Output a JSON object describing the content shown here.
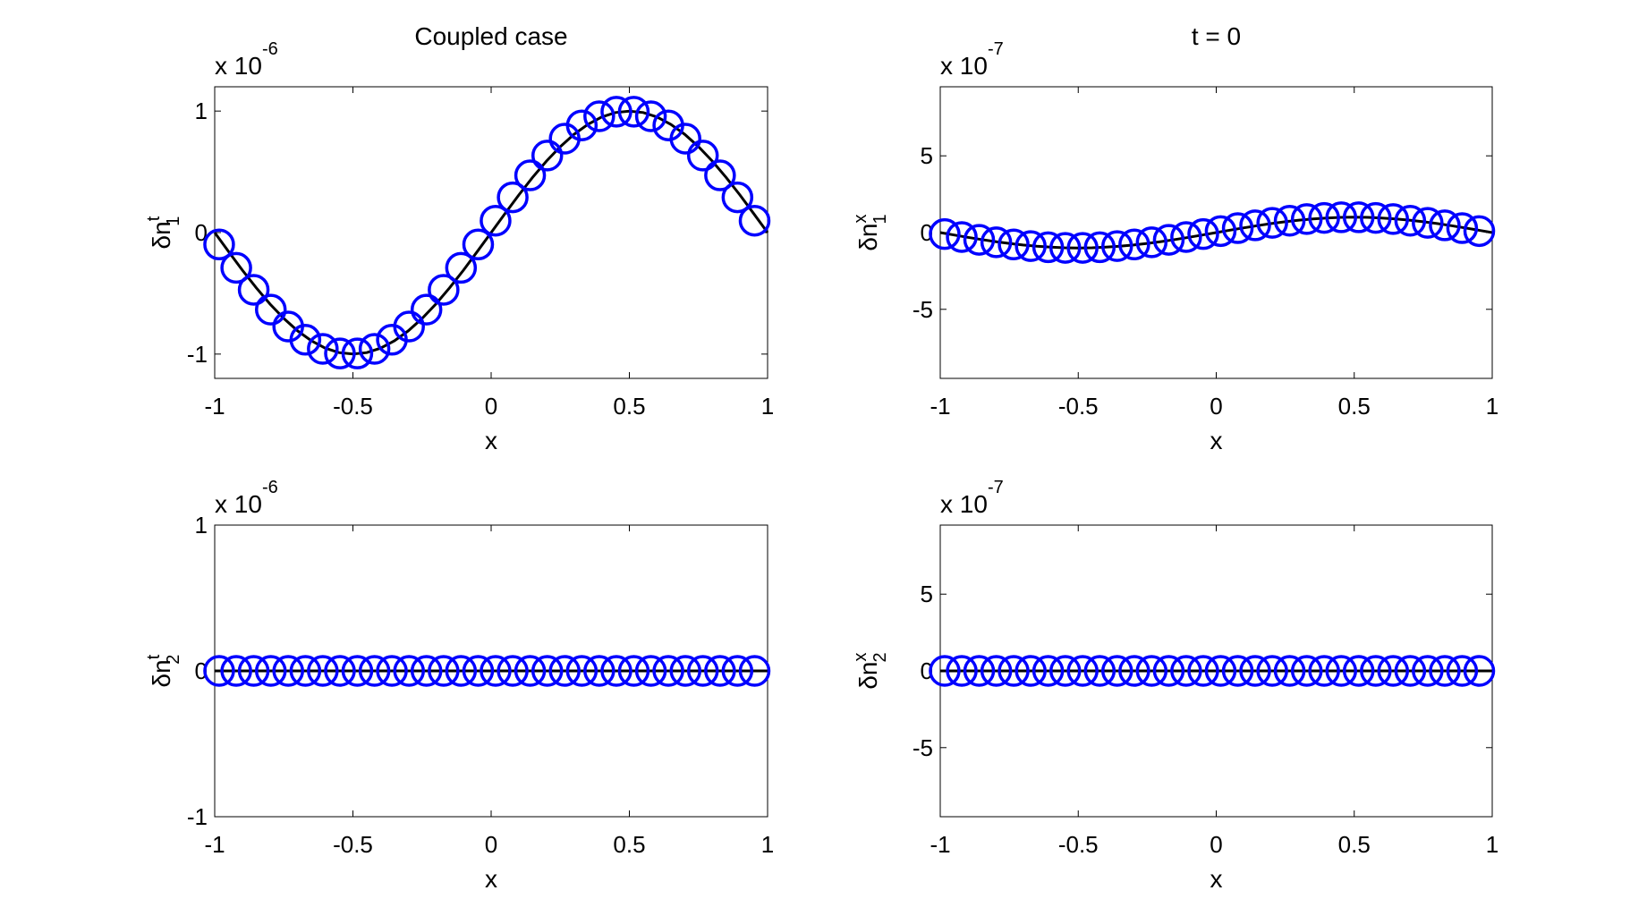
{
  "figure": {
    "background": "#ffffff",
    "marker_color": "#0000ff",
    "line_color": "#000000"
  },
  "chart_data": [
    {
      "type": "line",
      "title": "Coupled case",
      "xlabel": "x",
      "ylabel": {
        "base": "δn",
        "sup": "t",
        "sub": "1"
      },
      "exponent": {
        "prefix": "x 10",
        "power": "-6"
      },
      "xlim": [
        -1,
        1
      ],
      "ylim": [
        -1.2,
        1.2
      ],
      "xticks": [
        -1,
        -0.5,
        0,
        0.5,
        1
      ],
      "xtick_labels": [
        "-1",
        "-0.5",
        "0",
        "0.5",
        "1"
      ],
      "yticks": [
        -1,
        0,
        1
      ],
      "ytick_labels": [
        "-1",
        "0",
        "1"
      ],
      "series": [
        {
          "kind": "reference-line",
          "x": [
            -1,
            -0.95,
            -0.9,
            -0.85,
            -0.8,
            -0.75,
            -0.7,
            -0.65,
            -0.6,
            -0.55,
            -0.5,
            -0.45,
            -0.4,
            -0.35,
            -0.3,
            -0.25,
            -0.2,
            -0.15,
            -0.1,
            -0.05,
            0,
            0.05,
            0.1,
            0.15,
            0.2,
            0.25,
            0.3,
            0.35,
            0.4,
            0.45,
            0.5,
            0.55,
            0.6,
            0.65,
            0.7,
            0.75,
            0.8,
            0.85,
            0.9,
            0.95,
            1
          ],
          "y": [
            0,
            -0.156,
            -0.309,
            -0.454,
            -0.588,
            -0.707,
            -0.809,
            -0.891,
            -0.951,
            -0.988,
            -1,
            -0.988,
            -0.951,
            -0.891,
            -0.809,
            -0.707,
            -0.588,
            -0.454,
            -0.309,
            -0.156,
            0,
            0.156,
            0.309,
            0.454,
            0.588,
            0.707,
            0.809,
            0.891,
            0.951,
            0.988,
            1,
            0.988,
            0.951,
            0.891,
            0.809,
            0.707,
            0.588,
            0.454,
            0.309,
            0.156,
            0
          ]
        },
        {
          "kind": "markers",
          "x": [
            -0.984,
            -0.922,
            -0.859,
            -0.797,
            -0.734,
            -0.672,
            -0.609,
            -0.547,
            -0.484,
            -0.422,
            -0.359,
            -0.297,
            -0.234,
            -0.172,
            -0.109,
            -0.047,
            0.016,
            0.078,
            0.141,
            0.203,
            0.266,
            0.328,
            0.391,
            0.453,
            0.516,
            0.578,
            0.641,
            0.703,
            0.766,
            0.828,
            0.891,
            0.953
          ],
          "y": [
            -0.098,
            -0.29,
            -0.471,
            -0.634,
            -0.773,
            -0.882,
            -0.957,
            -0.995,
            -0.995,
            -0.957,
            -0.882,
            -0.773,
            -0.634,
            -0.471,
            -0.29,
            -0.098,
            0.098,
            0.29,
            0.471,
            0.634,
            0.773,
            0.882,
            0.957,
            0.995,
            0.995,
            0.957,
            0.882,
            0.773,
            0.634,
            0.471,
            0.29,
            0.098
          ]
        }
      ]
    },
    {
      "type": "line",
      "title": "t = 0",
      "xlabel": "x",
      "ylabel": {
        "base": "δn",
        "sup": "x",
        "sub": "1"
      },
      "exponent": {
        "prefix": "x 10",
        "power": "-7"
      },
      "xlim": [
        -1,
        1
      ],
      "ylim": [
        -9.5,
        9.5
      ],
      "xticks": [
        -1,
        -0.5,
        0,
        0.5,
        1
      ],
      "xtick_labels": [
        "-1",
        "-0.5",
        "0",
        "0.5",
        "1"
      ],
      "yticks": [
        -5,
        0,
        5
      ],
      "ytick_labels": [
        "-5",
        "0",
        "5"
      ],
      "series": [
        {
          "kind": "reference-line",
          "x": [
            -1,
            -0.95,
            -0.9,
            -0.85,
            -0.8,
            -0.75,
            -0.7,
            -0.65,
            -0.6,
            -0.55,
            -0.5,
            -0.45,
            -0.4,
            -0.35,
            -0.3,
            -0.25,
            -0.2,
            -0.15,
            -0.1,
            -0.05,
            0,
            0.05,
            0.1,
            0.15,
            0.2,
            0.25,
            0.3,
            0.35,
            0.4,
            0.45,
            0.5,
            0.55,
            0.6,
            0.65,
            0.7,
            0.75,
            0.8,
            0.85,
            0.9,
            0.95,
            1
          ],
          "y": [
            0,
            -0.156,
            -0.309,
            -0.454,
            -0.588,
            -0.707,
            -0.809,
            -0.891,
            -0.951,
            -0.988,
            -1,
            -0.988,
            -0.951,
            -0.891,
            -0.809,
            -0.707,
            -0.588,
            -0.454,
            -0.309,
            -0.156,
            0,
            0.156,
            0.309,
            0.454,
            0.588,
            0.707,
            0.809,
            0.891,
            0.951,
            0.988,
            1,
            0.988,
            0.951,
            0.891,
            0.809,
            0.707,
            0.588,
            0.454,
            0.309,
            0.156,
            0
          ]
        },
        {
          "kind": "markers",
          "x": [
            -0.984,
            -0.922,
            -0.859,
            -0.797,
            -0.734,
            -0.672,
            -0.609,
            -0.547,
            -0.484,
            -0.422,
            -0.359,
            -0.297,
            -0.234,
            -0.172,
            -0.109,
            -0.047,
            0.016,
            0.078,
            0.141,
            0.203,
            0.266,
            0.328,
            0.391,
            0.453,
            0.516,
            0.578,
            0.641,
            0.703,
            0.766,
            0.828,
            0.891,
            0.953
          ],
          "y": [
            -0.098,
            -0.29,
            -0.471,
            -0.634,
            -0.773,
            -0.882,
            -0.957,
            -0.995,
            -0.995,
            -0.957,
            -0.882,
            -0.773,
            -0.634,
            -0.471,
            -0.29,
            -0.098,
            0.098,
            0.29,
            0.471,
            0.634,
            0.773,
            0.882,
            0.957,
            0.995,
            0.995,
            0.957,
            0.882,
            0.773,
            0.634,
            0.471,
            0.29,
            0.098
          ]
        }
      ]
    },
    {
      "type": "line",
      "title": "",
      "xlabel": "x",
      "ylabel": {
        "base": "δn",
        "sup": "t",
        "sub": "2"
      },
      "exponent": {
        "prefix": "x 10",
        "power": "-6"
      },
      "xlim": [
        -1,
        1
      ],
      "ylim": [
        -1,
        1
      ],
      "xticks": [
        -1,
        -0.5,
        0,
        0.5,
        1
      ],
      "xtick_labels": [
        "-1",
        "-0.5",
        "0",
        "0.5",
        "1"
      ],
      "yticks": [
        -1,
        0,
        1
      ],
      "ytick_labels": [
        "-1",
        "0",
        "1"
      ],
      "series": [
        {
          "kind": "reference-line",
          "x": [
            -1,
            1
          ],
          "y": [
            0,
            0
          ]
        },
        {
          "kind": "markers",
          "x": [
            -0.984,
            -0.922,
            -0.859,
            -0.797,
            -0.734,
            -0.672,
            -0.609,
            -0.547,
            -0.484,
            -0.422,
            -0.359,
            -0.297,
            -0.234,
            -0.172,
            -0.109,
            -0.047,
            0.016,
            0.078,
            0.141,
            0.203,
            0.266,
            0.328,
            0.391,
            0.453,
            0.516,
            0.578,
            0.641,
            0.703,
            0.766,
            0.828,
            0.891,
            0.953
          ],
          "y": [
            0,
            0,
            0,
            0,
            0,
            0,
            0,
            0,
            0,
            0,
            0,
            0,
            0,
            0,
            0,
            0,
            0,
            0,
            0,
            0,
            0,
            0,
            0,
            0,
            0,
            0,
            0,
            0,
            0,
            0,
            0,
            0
          ]
        }
      ]
    },
    {
      "type": "line",
      "title": "",
      "xlabel": "x",
      "ylabel": {
        "base": "δn",
        "sup": "x",
        "sub": "2"
      },
      "exponent": {
        "prefix": "x 10",
        "power": "-7"
      },
      "xlim": [
        -1,
        1
      ],
      "ylim": [
        -9.5,
        9.5
      ],
      "xticks": [
        -1,
        -0.5,
        0,
        0.5,
        1
      ],
      "xtick_labels": [
        "-1",
        "-0.5",
        "0",
        "0.5",
        "1"
      ],
      "yticks": [
        -5,
        0,
        5
      ],
      "ytick_labels": [
        "-5",
        "0",
        "5"
      ],
      "series": [
        {
          "kind": "reference-line",
          "x": [
            -1,
            1
          ],
          "y": [
            0,
            0
          ]
        },
        {
          "kind": "markers",
          "x": [
            -0.984,
            -0.922,
            -0.859,
            -0.797,
            -0.734,
            -0.672,
            -0.609,
            -0.547,
            -0.484,
            -0.422,
            -0.359,
            -0.297,
            -0.234,
            -0.172,
            -0.109,
            -0.047,
            0.016,
            0.078,
            0.141,
            0.203,
            0.266,
            0.328,
            0.391,
            0.453,
            0.516,
            0.578,
            0.641,
            0.703,
            0.766,
            0.828,
            0.891,
            0.953
          ],
          "y": [
            0,
            0,
            0,
            0,
            0,
            0,
            0,
            0,
            0,
            0,
            0,
            0,
            0,
            0,
            0,
            0,
            0,
            0,
            0,
            0,
            0,
            0,
            0,
            0,
            0,
            0,
            0,
            0,
            0,
            0,
            0,
            0
          ]
        }
      ]
    }
  ]
}
